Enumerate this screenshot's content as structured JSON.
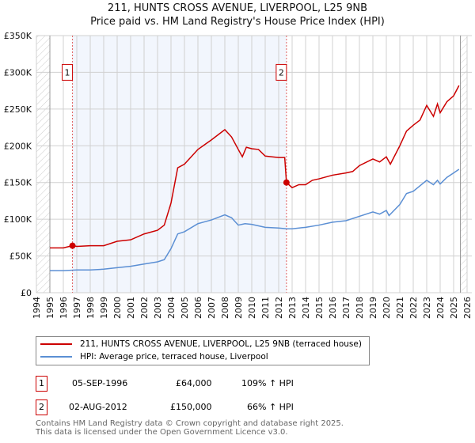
{
  "chart_data": {
    "type": "line",
    "title": "211, HUNTS CROSS AVENUE, LIVERPOOL, L25 9NB",
    "subtitle": "Price paid vs. HM Land Registry's House Price Index (HPI)",
    "xlabel": "",
    "ylabel": "",
    "xlim": [
      1994,
      2026
    ],
    "ylim": [
      0,
      350000
    ],
    "yticks": [
      0,
      50000,
      100000,
      150000,
      200000,
      250000,
      300000,
      350000
    ],
    "ytick_labels": [
      "£0",
      "£50K",
      "£100K",
      "£150K",
      "£200K",
      "£250K",
      "£300K",
      "£350K"
    ],
    "xticks": [
      1994,
      1995,
      1996,
      1997,
      1998,
      1999,
      2000,
      2001,
      2002,
      2003,
      2004,
      2005,
      2006,
      2007,
      2008,
      2009,
      2010,
      2011,
      2012,
      2013,
      2014,
      2015,
      2016,
      2017,
      2018,
      2019,
      2020,
      2021,
      2022,
      2023,
      2024,
      2025,
      2026
    ],
    "grid": true,
    "shaded_range": [
      1996.68,
      2012.58
    ],
    "hatched_ranges": [
      [
        1994,
        1995
      ],
      [
        2025.5,
        2026
      ]
    ],
    "series": [
      {
        "name": "211, HUNTS CROSS AVENUE, LIVERPOOL, L25 9NB (terraced house)",
        "color": "#cc0000",
        "x": [
          1995,
          1996,
          1996.68,
          1997,
          1998,
          1999,
          2000,
          2001,
          2002,
          2003,
          2003.5,
          2004,
          2004.5,
          2005,
          2006,
          2007,
          2007.5,
          2008,
          2008.5,
          2009,
          2009.3,
          2009.6,
          2010,
          2010.5,
          2011,
          2011.5,
          2012,
          2012.45,
          2012.58,
          2013,
          2013.5,
          2014,
          2014.5,
          2015,
          2016,
          2017,
          2017.5,
          2018,
          2019,
          2019.5,
          2020,
          2020.3,
          2021,
          2021.5,
          2022,
          2022.5,
          2023,
          2023.5,
          2023.8,
          2024,
          2024.5,
          2025,
          2025.4
        ],
        "y": [
          61000,
          61000,
          64000,
          63000,
          64000,
          64000,
          70000,
          72000,
          80000,
          85000,
          92000,
          122000,
          170000,
          175000,
          195000,
          208000,
          215000,
          222000,
          212000,
          195000,
          185000,
          198000,
          196000,
          195000,
          186000,
          185000,
          184000,
          184000,
          150000,
          143000,
          147000,
          147000,
          153000,
          155000,
          160000,
          163000,
          165000,
          173000,
          182000,
          178000,
          185000,
          175000,
          200000,
          220000,
          228000,
          235000,
          255000,
          240000,
          257000,
          245000,
          260000,
          268000,
          282000
        ]
      },
      {
        "name": "HPI: Average price, terraced house, Liverpool",
        "color": "#5b8fd4",
        "x": [
          1995,
          1996,
          1997,
          1998,
          1999,
          2000,
          2001,
          2002,
          2003,
          2003.5,
          2004,
          2004.5,
          2005,
          2006,
          2007,
          2008,
          2008.5,
          2009,
          2009.5,
          2010,
          2011,
          2012,
          2012.6,
          2013,
          2014,
          2015,
          2016,
          2017,
          2018,
          2019,
          2019.5,
          2020,
          2020.2,
          2021,
          2021.5,
          2022,
          2023,
          2023.5,
          2023.8,
          2024,
          2024.5,
          2025,
          2025.4
        ],
        "y": [
          30000,
          30000,
          31000,
          31000,
          32000,
          34000,
          36000,
          39000,
          42000,
          45000,
          60000,
          80000,
          83000,
          94000,
          99000,
          106000,
          102000,
          92000,
          94000,
          93000,
          89000,
          88000,
          87000,
          87000,
          89000,
          92000,
          96000,
          98000,
          104000,
          110000,
          107000,
          112000,
          105000,
          120000,
          135000,
          138000,
          153000,
          147000,
          153000,
          148000,
          157000,
          163000,
          168000
        ]
      }
    ],
    "sales": [
      {
        "label": "1",
        "x": 1996.68,
        "y": 64000,
        "date": "05-SEP-1996",
        "price": "£64,000",
        "hpi": "109% ↑ HPI"
      },
      {
        "label": "2",
        "x": 2012.58,
        "y": 150000,
        "date": "02-AUG-2012",
        "price": "£150,000",
        "hpi": "66% ↑ HPI"
      }
    ],
    "legend_position": "below"
  },
  "footer": {
    "line1": "Contains HM Land Registry data © Crown copyright and database right 2025.",
    "line2": "This data is licensed under the Open Government Licence v3.0."
  }
}
